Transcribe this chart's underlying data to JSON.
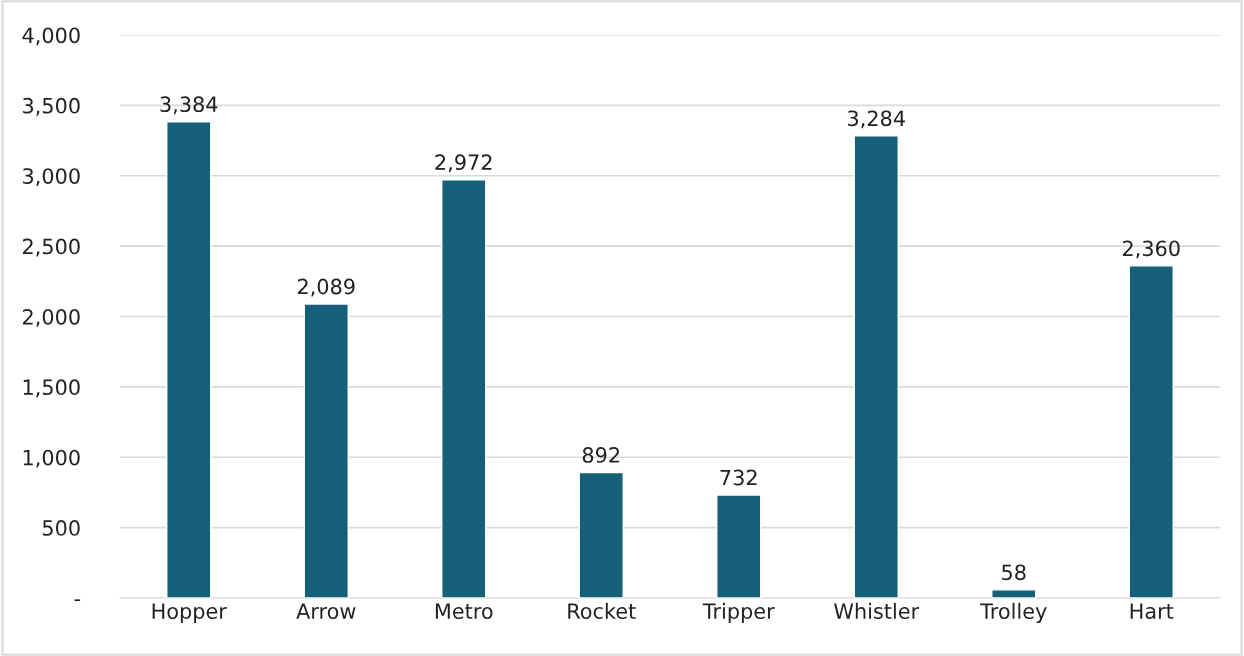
{
  "chart_data": {
    "type": "bar",
    "categories": [
      "Hopper",
      "Arrow",
      "Metro",
      "Rocket",
      "Tripper",
      "Whistler",
      "Trolley",
      "Hart"
    ],
    "values": [
      3384,
      2089,
      2972,
      892,
      732,
      3284,
      58,
      2360
    ],
    "color": "#155f78",
    "data_labels": true,
    "value_labels": [
      "3,384",
      "2,089",
      "2,972",
      "892",
      "732",
      "3,284",
      "58",
      "2,360"
    ],
    "ylim": [
      0,
      4000
    ],
    "yticks": [
      {
        "value": 0,
        "label": "-"
      },
      {
        "value": 500,
        "label": "500"
      },
      {
        "value": 1000,
        "label": "1,000"
      },
      {
        "value": 1500,
        "label": "1,500"
      },
      {
        "value": 2000,
        "label": "2,000"
      },
      {
        "value": 2500,
        "label": "2,500"
      },
      {
        "value": 3000,
        "label": "3,000"
      },
      {
        "value": 3500,
        "label": "3,500"
      },
      {
        "value": 4000,
        "label": "4,000"
      }
    ],
    "grid": "y"
  }
}
